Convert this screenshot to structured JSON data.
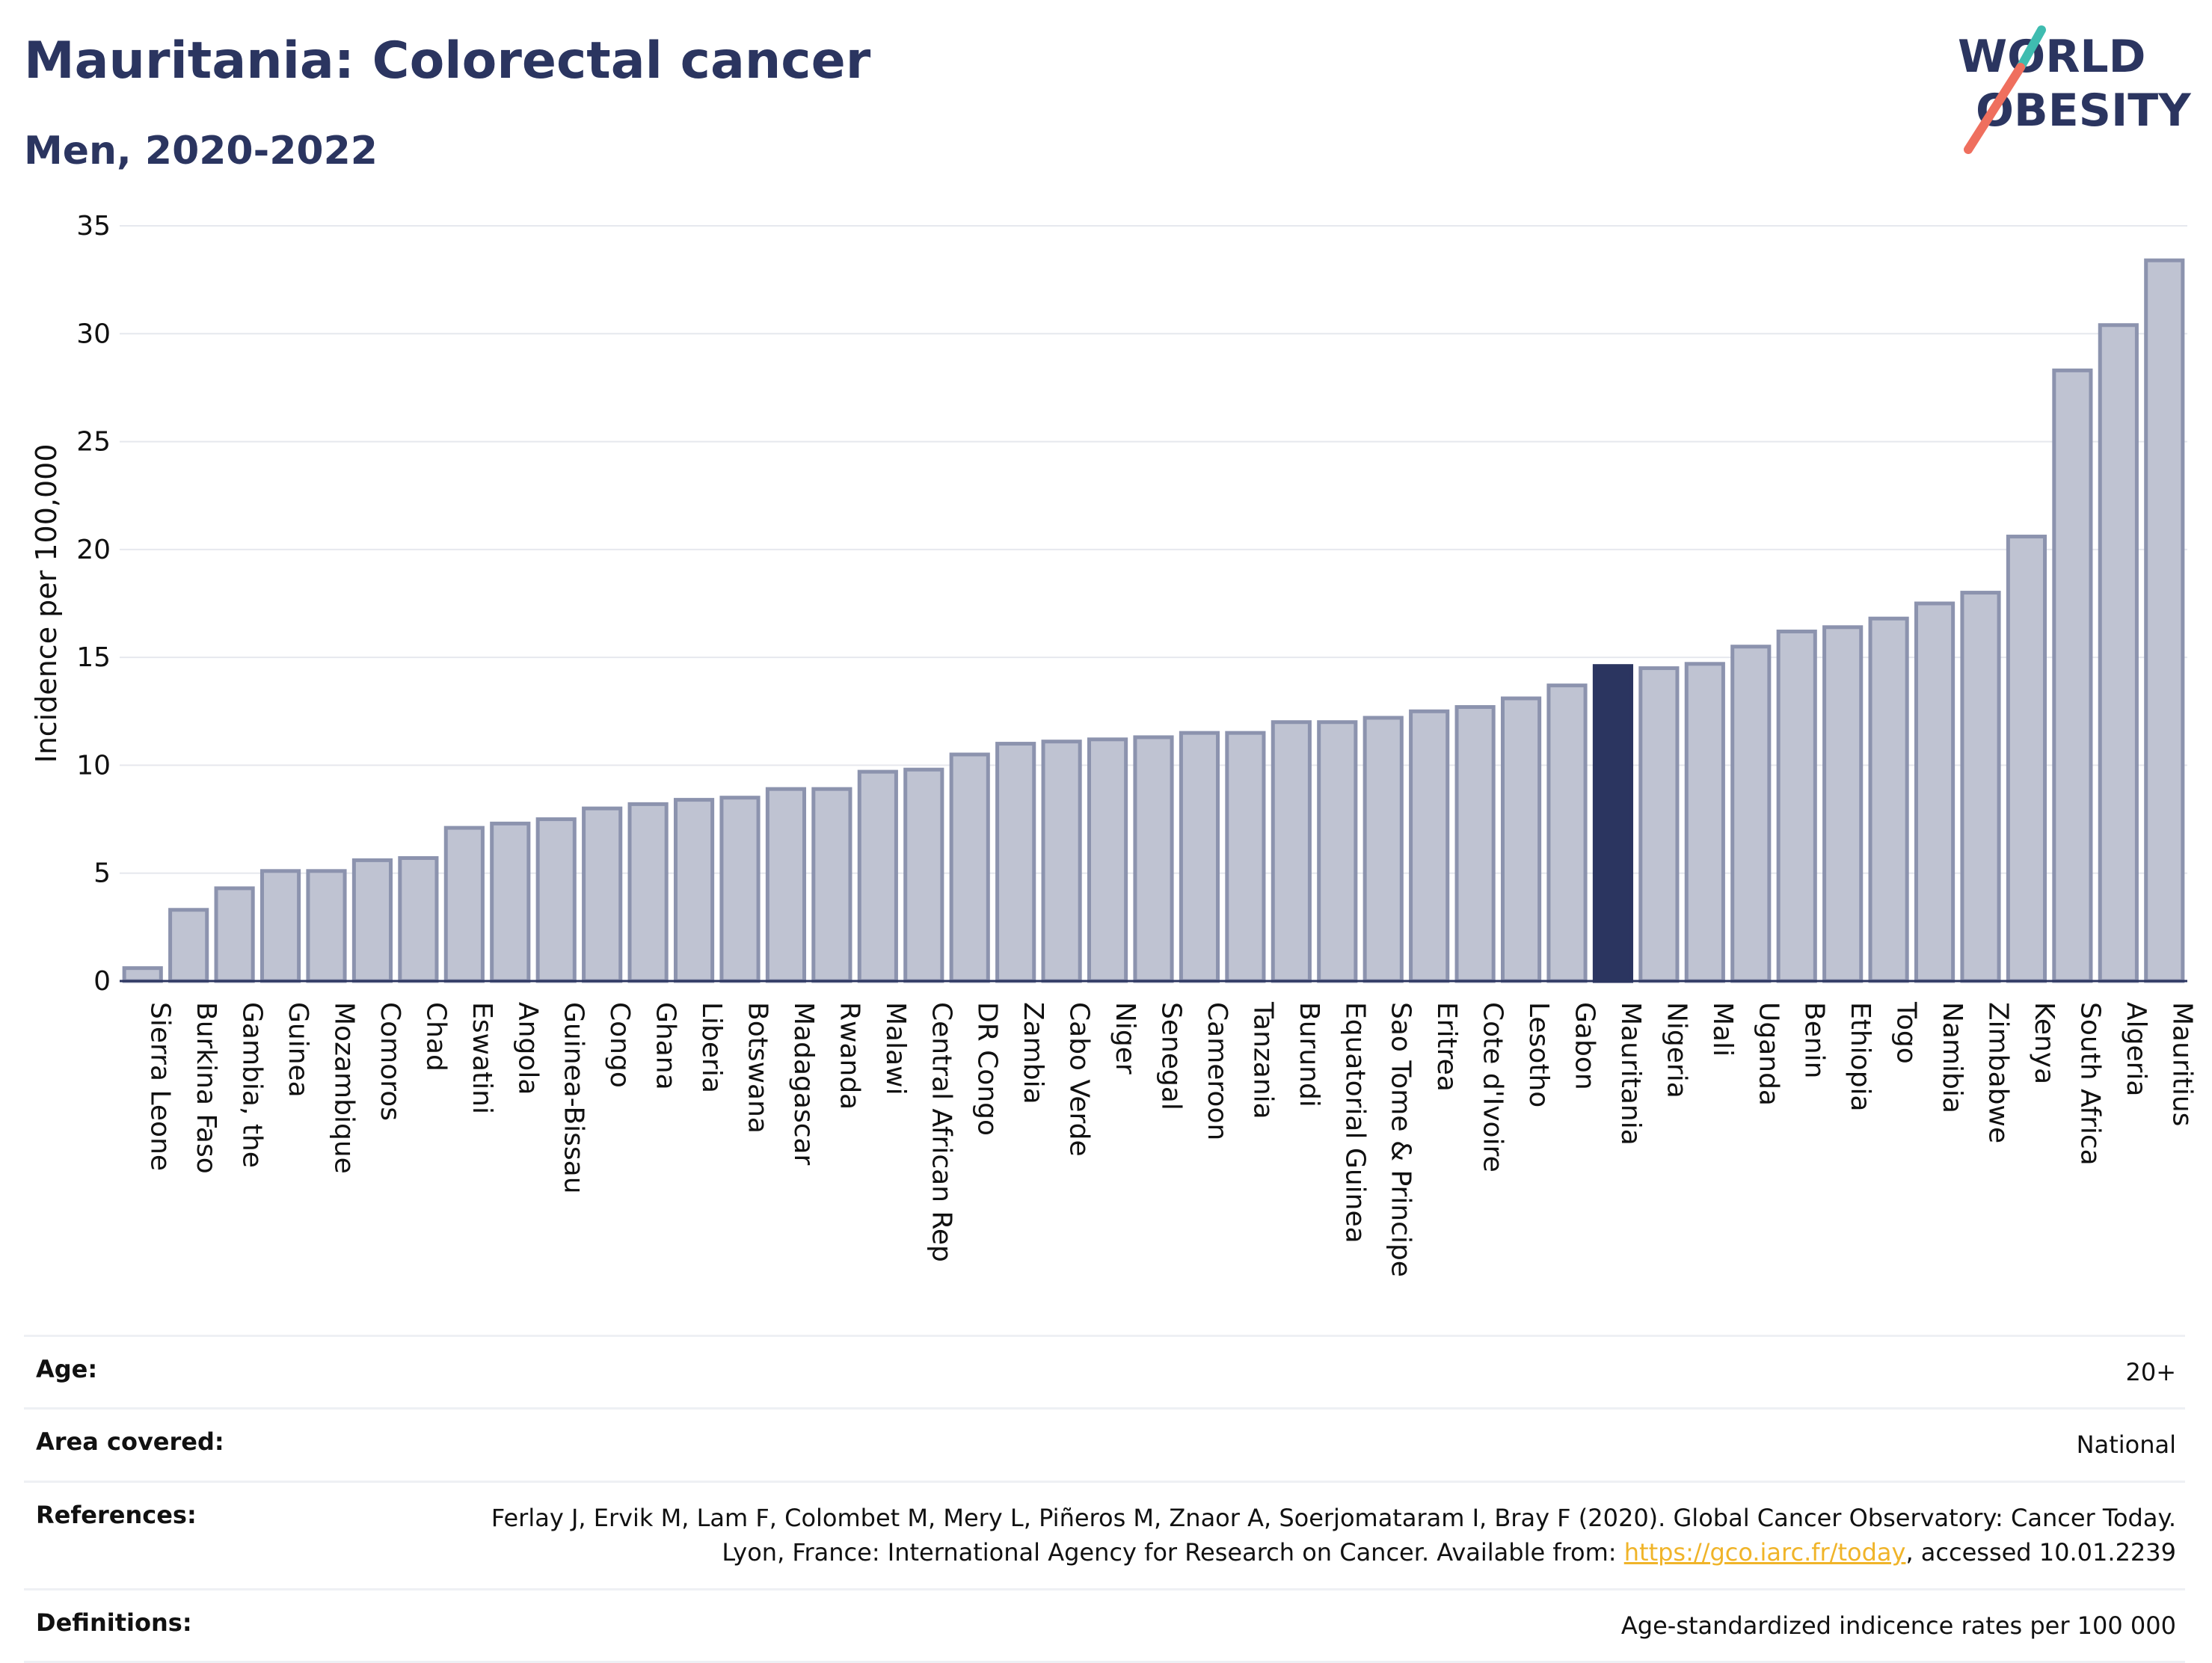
{
  "header": {
    "title": "Mauritania: Colorectal cancer",
    "subtitle": "Men, 2020-2022"
  },
  "logo": {
    "line1": "WORLD",
    "line2": "OBESITY"
  },
  "colors": {
    "bar": "#bfc3d2",
    "bar_border": "#8c93ae",
    "highlight": "#2b3560",
    "text": "#2b3560"
  },
  "chart_data": {
    "type": "bar",
    "ylabel": "Incidence per 100,000",
    "ylim": [
      0,
      35
    ],
    "yticks": [
      0,
      5,
      10,
      15,
      20,
      25,
      30,
      35
    ],
    "grid": true,
    "highlight": "Mauritania",
    "categories": [
      "Sierra Leone",
      "Burkina Faso",
      "Gambia, the",
      "Guinea",
      "Mozambique",
      "Comoros",
      "Chad",
      "Eswatini",
      "Angola",
      "Guinea-Bissau",
      "Congo",
      "Ghana",
      "Liberia",
      "Botswana",
      "Madagascar",
      "Rwanda",
      "Malawi",
      "Central African Rep",
      "DR Congo",
      "Zambia",
      "Cabo Verde",
      "Niger",
      "Senegal",
      "Cameroon",
      "Tanzania",
      "Burundi",
      "Equatorial Guinea",
      "Sao Tome & Principe",
      "Eritrea",
      "Cote d'Ivoire",
      "Lesotho",
      "Gabon",
      "Mauritania",
      "Nigeria",
      "Mali",
      "Uganda",
      "Benin",
      "Ethiopia",
      "Togo",
      "Namibia",
      "Zimbabwe",
      "Kenya",
      "South Africa",
      "Algeria",
      "Mauritius"
    ],
    "values": [
      0.6,
      3.3,
      4.3,
      5.1,
      5.1,
      5.6,
      5.7,
      7.1,
      7.3,
      7.5,
      8.0,
      8.2,
      8.4,
      8.5,
      8.9,
      8.9,
      9.7,
      9.8,
      10.5,
      11.0,
      11.1,
      11.2,
      11.3,
      11.5,
      11.5,
      12.0,
      12.0,
      12.2,
      12.5,
      12.7,
      13.1,
      13.7,
      14.6,
      14.5,
      14.7,
      15.5,
      16.2,
      16.4,
      16.8,
      17.5,
      18.0,
      20.6,
      28.3,
      30.4,
      33.4
    ]
  },
  "meta": {
    "age_label": "Age:",
    "age_value": "20+",
    "area_label": "Area covered:",
    "area_value": "National",
    "references_label": "References:",
    "references_text": "Ferlay J, Ervik M, Lam F, Colombet M, Mery L, Piñeros M, Znaor A, Soerjomataram I, Bray F (2020). Global Cancer Observatory: Cancer Today. Lyon, France: International Agency for Research on Cancer. Available from:",
    "references_link": "https://gco.iarc.fr/today",
    "references_tail": ", accessed 10.01.2239",
    "definitions_label": "Definitions:",
    "definitions_value": "Age-standardized indicence rates per 100 000"
  }
}
